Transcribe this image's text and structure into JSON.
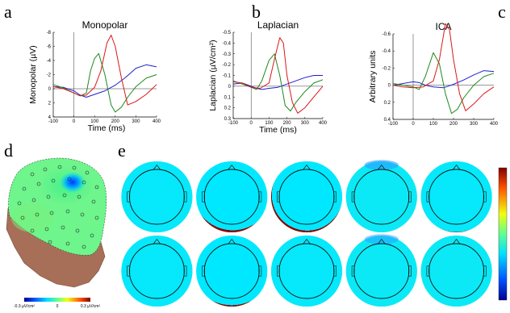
{
  "panel_letters": [
    "a",
    "b",
    "c",
    "d",
    "e"
  ],
  "colors": {
    "series_1": "#1f1fd0",
    "series_2": "#1c8a1c",
    "series_3": "#d81818"
  },
  "chart_data": [
    {
      "type": "line",
      "title": "Monopolar",
      "xlabel": "Time (ms)",
      "ylabel": "Monopolar (µV)",
      "xlim": [
        -100,
        400
      ],
      "ylim": [
        -8,
        4
      ],
      "y_inverted": true,
      "xticks": [
        "-100",
        "0",
        "100",
        "200",
        "300",
        "400"
      ],
      "yticks": [
        "-8",
        "-6",
        "-4",
        "-2",
        "0",
        "2",
        "4"
      ],
      "series": [
        {
          "color": "#1f1fd0",
          "x": [
            -100,
            -50,
            0,
            30,
            60,
            100,
            150,
            200,
            250,
            300,
            350,
            400
          ],
          "y": [
            -0.3,
            -0.2,
            0.3,
            0.9,
            1.2,
            0.8,
            0.3,
            -0.5,
            -1.6,
            -2.9,
            -3.4,
            -3.1
          ]
        },
        {
          "color": "#1c8a1c",
          "x": [
            -100,
            -50,
            0,
            30,
            60,
            80,
            100,
            120,
            150,
            180,
            200,
            230,
            260,
            300,
            350,
            400
          ],
          "y": [
            -0.6,
            -0.1,
            0.6,
            1.0,
            0.6,
            -2.5,
            -4.3,
            -5.0,
            -2.0,
            2.3,
            3.3,
            2.6,
            1.2,
            -0.3,
            -1.5,
            -2.0
          ]
        },
        {
          "color": "#d81818",
          "x": [
            -100,
            -50,
            0,
            30,
            60,
            100,
            130,
            160,
            180,
            200,
            230,
            260,
            300,
            350,
            400
          ],
          "y": [
            -0.3,
            0.0,
            0.6,
            1.0,
            0.9,
            -0.2,
            -2.5,
            -6.5,
            -7.6,
            -6.0,
            -1.5,
            2.3,
            1.8,
            0.8,
            -0.6
          ]
        }
      ]
    },
    {
      "type": "line",
      "title": "Laplacian",
      "xlabel": "Time (ms)",
      "ylabel": "Laplacian (µV/cm²)",
      "xlim": [
        -100,
        400
      ],
      "ylim": [
        -0.5,
        0.3
      ],
      "y_inverted": true,
      "xticks": [
        "-100",
        "0",
        "100",
        "200",
        "300",
        "400"
      ],
      "yticks": [
        "-0.5",
        "-0.4",
        "-0.3",
        "-0.2",
        "-0.1",
        "0",
        "0.1",
        "0.2",
        "0.3"
      ],
      "series": [
        {
          "color": "#1f1fd0",
          "x": [
            -100,
            -50,
            0,
            30,
            60,
            100,
            150,
            200,
            250,
            300,
            350,
            400
          ],
          "y": [
            -0.02,
            -0.03,
            0.0,
            0.02,
            0.03,
            0.02,
            0.01,
            -0.02,
            -0.05,
            -0.08,
            -0.1,
            -0.1
          ]
        },
        {
          "color": "#1c8a1c",
          "x": [
            -100,
            -50,
            0,
            30,
            60,
            100,
            130,
            160,
            190,
            220,
            250,
            300,
            350,
            400
          ],
          "y": [
            -0.05,
            -0.02,
            0.01,
            0.03,
            -0.05,
            -0.24,
            -0.3,
            -0.1,
            0.18,
            0.23,
            0.15,
            0.05,
            -0.03,
            -0.06
          ]
        },
        {
          "color": "#d81818",
          "x": [
            -100,
            -50,
            0,
            50,
            100,
            130,
            160,
            180,
            200,
            230,
            260,
            300,
            350,
            400
          ],
          "y": [
            -0.04,
            -0.03,
            0.01,
            0.02,
            -0.03,
            -0.25,
            -0.45,
            -0.4,
            -0.1,
            0.15,
            0.25,
            0.2,
            0.1,
            0.0
          ]
        }
      ]
    },
    {
      "type": "line",
      "title": "ICA",
      "xlabel": "",
      "ylabel": "Arbitrary units",
      "xlim": [
        -100,
        400
      ],
      "ylim": [
        -0.6,
        0.4
      ],
      "y_inverted": true,
      "xticks": [
        "-100",
        "0",
        "100",
        "200",
        "300",
        "400"
      ],
      "yticks": [
        "-0.6",
        "-0.4",
        "-0.2",
        "0",
        "0.2",
        "0.4"
      ],
      "series": [
        {
          "color": "#1f1fd0",
          "x": [
            -100,
            -50,
            0,
            30,
            60,
            100,
            150,
            200,
            250,
            300,
            350,
            400
          ],
          "y": [
            0.0,
            -0.02,
            -0.04,
            -0.03,
            0.0,
            0.02,
            0.03,
            -0.01,
            -0.06,
            -0.12,
            -0.17,
            -0.16
          ]
        },
        {
          "color": "#1c8a1c",
          "x": [
            -100,
            -50,
            0,
            30,
            60,
            100,
            130,
            160,
            190,
            220,
            250,
            300,
            350,
            400
          ],
          "y": [
            -0.02,
            0.0,
            0.02,
            0.05,
            -0.1,
            -0.38,
            -0.25,
            0.1,
            0.33,
            0.28,
            0.15,
            0.0,
            -0.1,
            -0.14
          ]
        },
        {
          "color": "#d81818",
          "x": [
            -100,
            -50,
            0,
            50,
            100,
            130,
            160,
            180,
            200,
            230,
            260,
            300,
            350,
            400
          ],
          "y": [
            0.0,
            0.02,
            0.03,
            0.02,
            -0.05,
            -0.3,
            -0.72,
            -0.65,
            -0.3,
            0.1,
            0.3,
            0.22,
            0.1,
            0.02
          ]
        }
      ]
    }
  ],
  "head_colorbar": {
    "labels": [
      "-0.3 µV/cm²",
      "0",
      "0.3 µV/cm²"
    ]
  },
  "topomap_grid": {
    "rows": 2,
    "cols": 5,
    "maps": [
      {
        "peak_level": 0.95,
        "cx": 0.0,
        "cy": -0.05,
        "spread": 0.28,
        "blue_top": 0.0
      },
      {
        "peak_level": 1.0,
        "cx": 0.03,
        "cy": -0.2,
        "spread": 0.32,
        "blue_top": 0.0
      },
      {
        "peak_level": 1.0,
        "cx": 0.02,
        "cy": -0.05,
        "spread": 0.25,
        "blue_top": 0.0
      },
      {
        "peak_level": 0.9,
        "cx": 0.0,
        "cy": -0.1,
        "spread": 0.38,
        "blue_top": 0.6
      },
      {
        "peak_level": 0.95,
        "cx": 0.0,
        "cy": -0.15,
        "spread": 0.32,
        "blue_top": 0.0
      },
      {
        "peak_level": 0.95,
        "cx": 0.0,
        "cy": -0.1,
        "spread": 0.35,
        "blue_top": 0.0
      },
      {
        "peak_level": 1.0,
        "cx": 0.0,
        "cy": -0.3,
        "spread": 0.38,
        "blue_top": 0.0
      },
      {
        "peak_level": 0.95,
        "cx": 0.0,
        "cy": 0.0,
        "spread": 0.55,
        "blue_top": 0.0
      },
      {
        "peak_level": 0.9,
        "cx": 0.0,
        "cy": -0.2,
        "spread": 0.4,
        "blue_top": 0.5
      },
      {
        "peak_level": 0.9,
        "cx": 0.1,
        "cy": -0.15,
        "spread": 0.45,
        "blue_top": 0.0
      }
    ]
  }
}
